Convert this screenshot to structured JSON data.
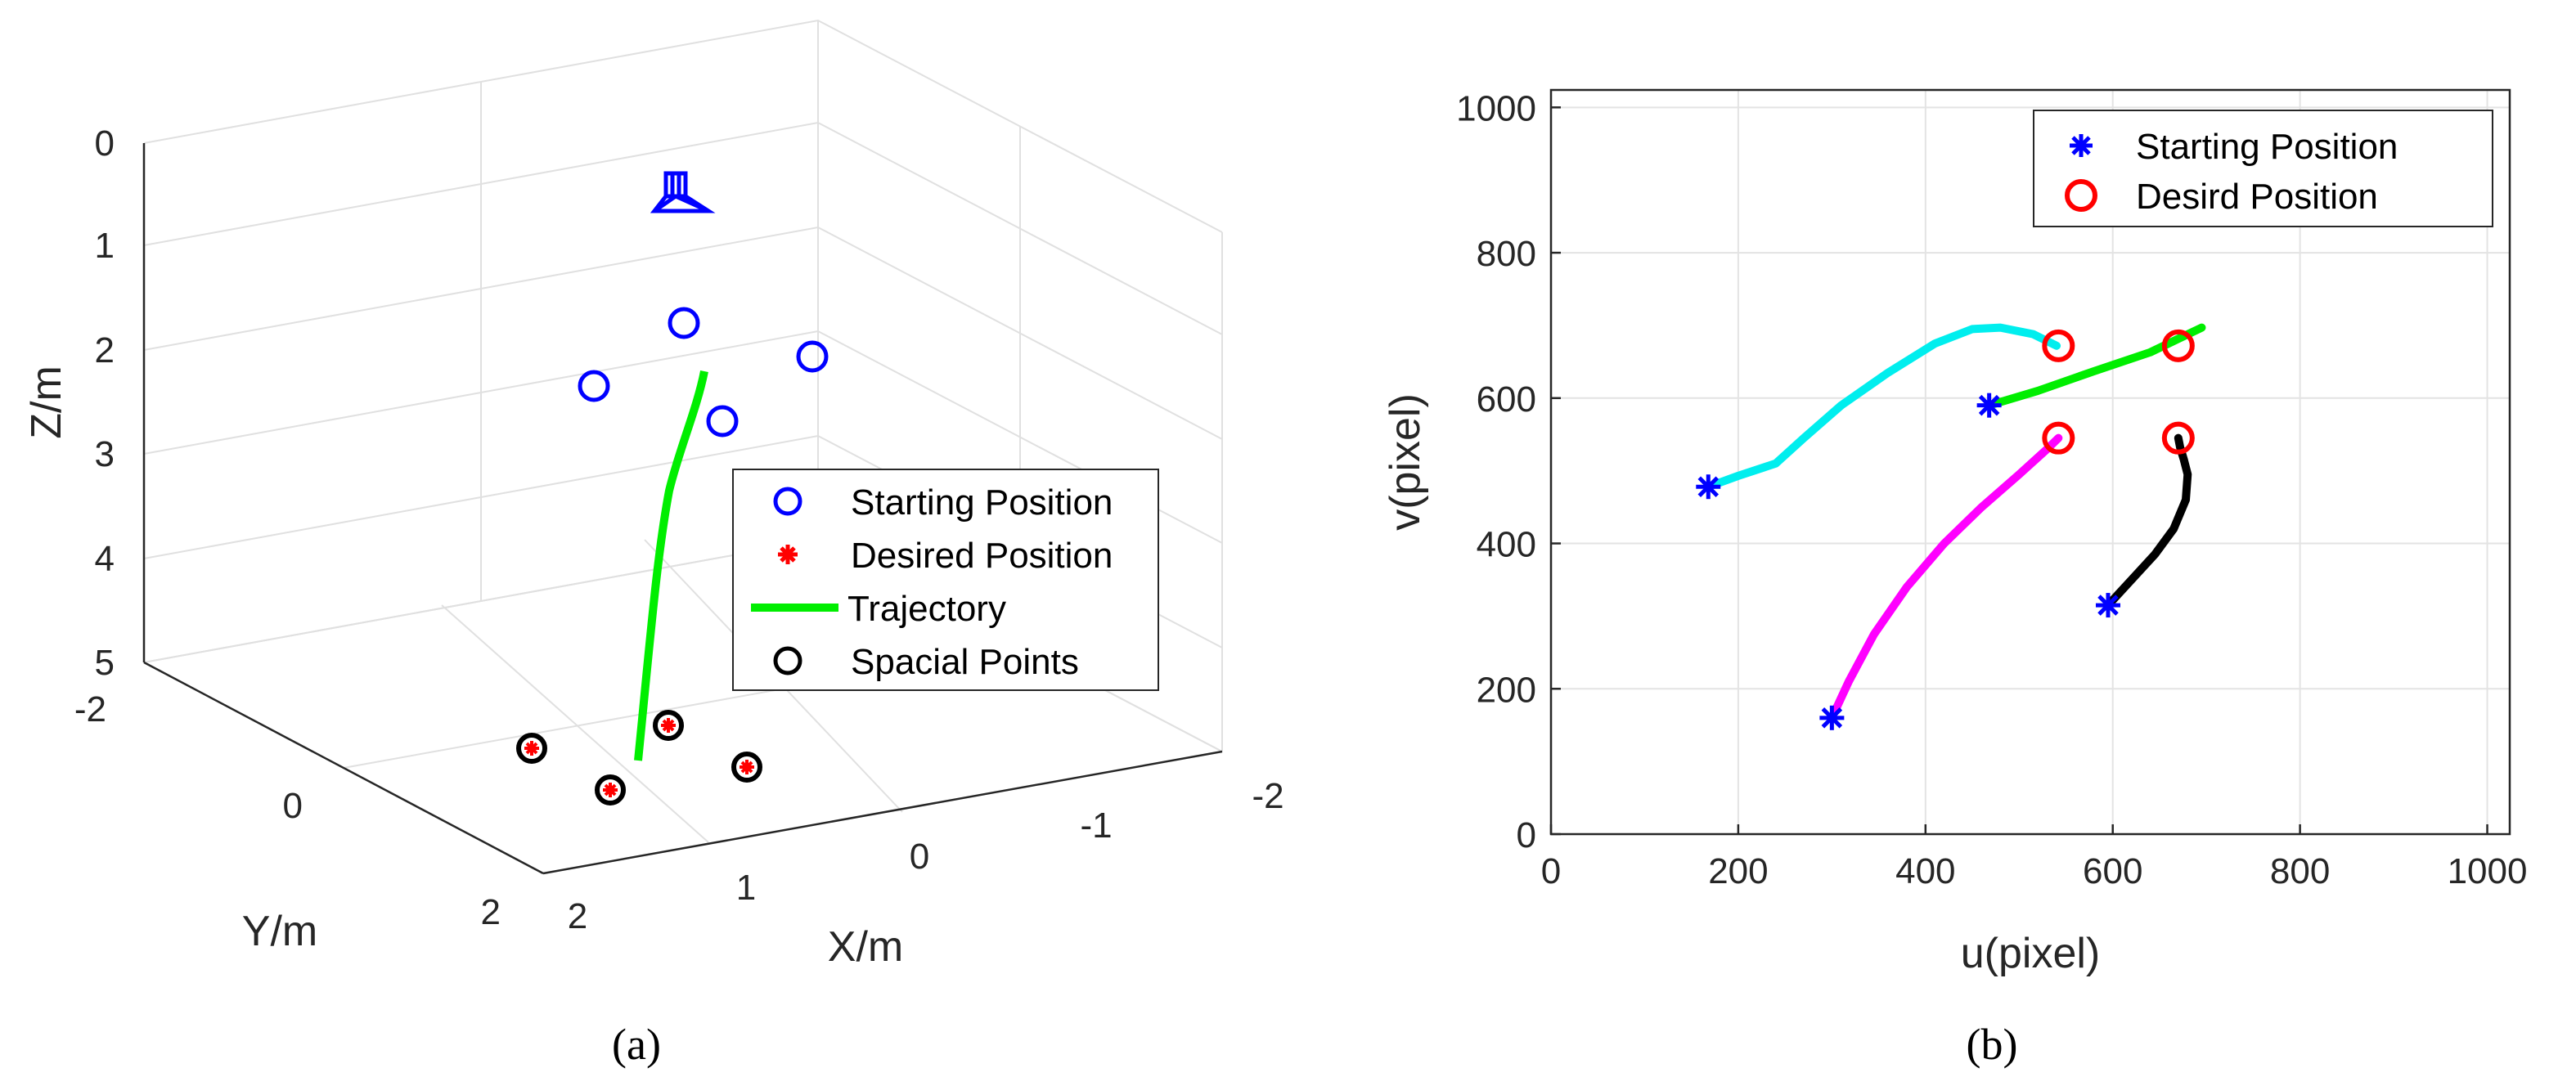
{
  "figure_a": {
    "caption": "(a)",
    "xlabel": "X/m",
    "ylabel": "Y/m",
    "zlabel": "Z/m",
    "legend": {
      "starting": "Starting Position",
      "desired": "Desired Position",
      "trajectory": "Trajectory",
      "spacial": "Spacial Points"
    }
  },
  "figure_b": {
    "caption": "(b)",
    "legend": {
      "starting": "Starting Position",
      "desired": "Desird Position"
    }
  },
  "chart_data": [
    {
      "type": "scatter",
      "title": "",
      "projection": "3d",
      "xlabel": "X/m",
      "ylabel": "Y/m",
      "zlabel": "Z/m",
      "xlim": [
        -2,
        2
      ],
      "ylim": [
        -2,
        2
      ],
      "zlim": [
        0,
        5
      ],
      "z_direction": "reversed",
      "x_ticks": [
        "-2",
        "-1",
        "0",
        "1",
        "2"
      ],
      "y_ticks": [
        "-2",
        "0",
        "2"
      ],
      "z_ticks": [
        "0",
        "1",
        "2",
        "3",
        "4",
        "5"
      ],
      "legend_position": "right",
      "series": [
        {
          "name": "Starting Position",
          "marker": "circle",
          "color": "#0000ff",
          "points": [
            [
              0.4,
              -0.4,
              2.0
            ],
            [
              0.4,
              0.4,
              2.0
            ],
            [
              -0.4,
              0.4,
              2.0
            ],
            [
              -0.4,
              -0.4,
              2.0
            ]
          ]
        },
        {
          "name": "Desired Position",
          "marker": "asterisk",
          "color": "#ff0000",
          "points": [
            [
              0.5,
              -0.5,
              5.0
            ],
            [
              0.5,
              0.5,
              5.0
            ],
            [
              -0.5,
              0.5,
              5.0
            ],
            [
              -0.5,
              -0.5,
              5.0
            ]
          ]
        },
        {
          "name": "Trajectory",
          "marker": "line",
          "color": "#00ee00",
          "points": [
            [
              0.0,
              0.0,
              2.2
            ],
            [
              0.02,
              0.02,
              2.6
            ],
            [
              0.05,
              0.05,
              3.0
            ],
            [
              0.1,
              0.1,
              3.5
            ],
            [
              0.15,
              0.15,
              4.0
            ],
            [
              0.2,
              0.2,
              4.5
            ],
            [
              0.25,
              0.25,
              5.0
            ]
          ]
        },
        {
          "name": "Spacial Points",
          "marker": "circle",
          "color": "#000000",
          "points": [
            [
              0.5,
              -0.5,
              5.0
            ],
            [
              0.5,
              0.5,
              5.0
            ],
            [
              -0.5,
              0.5,
              5.0
            ],
            [
              -0.5,
              -0.5,
              5.0
            ]
          ]
        }
      ]
    },
    {
      "type": "line",
      "title": "",
      "xlabel": "u(pixel)",
      "ylabel": "v(pixel)",
      "xlim": [
        0,
        1024
      ],
      "ylim": [
        1024,
        0
      ],
      "x_ticks": [
        0,
        200,
        400,
        600,
        800,
        1000
      ],
      "y_ticks": [
        0,
        200,
        400,
        600,
        800,
        1000
      ],
      "grid": true,
      "legend_position": "top-right",
      "starting_points": [
        [
          300,
          160
        ],
        [
          595,
          315
        ],
        [
          168,
          478
        ],
        [
          468,
          590
        ]
      ],
      "desired_points": [
        [
          542,
          545
        ],
        [
          670,
          545
        ],
        [
          542,
          672
        ],
        [
          670,
          672
        ]
      ],
      "series": [
        {
          "name": "magenta",
          "color": "#ff00ff",
          "x": [
            300,
            318,
            345,
            380,
            420,
            460,
            500,
            530,
            542
          ],
          "y": [
            160,
            210,
            275,
            340,
            400,
            450,
            495,
            530,
            545
          ]
        },
        {
          "name": "black",
          "color": "#000000",
          "x": [
            595,
            620,
            645,
            665,
            678,
            680,
            676,
            672,
            670
          ],
          "y": [
            315,
            350,
            385,
            420,
            460,
            495,
            515,
            532,
            545
          ]
        },
        {
          "name": "cyan",
          "color": "#00eeee",
          "x": [
            168,
            200,
            240,
            270,
            310,
            360,
            410,
            450,
            480,
            515,
            540
          ],
          "y": [
            478,
            493,
            510,
            545,
            590,
            635,
            675,
            695,
            697,
            688,
            672
          ]
        },
        {
          "name": "green",
          "color": "#00ee00",
          "x": [
            468,
            520,
            580,
            640,
            695
          ],
          "y": [
            590,
            610,
            637,
            663,
            697
          ]
        }
      ]
    }
  ]
}
